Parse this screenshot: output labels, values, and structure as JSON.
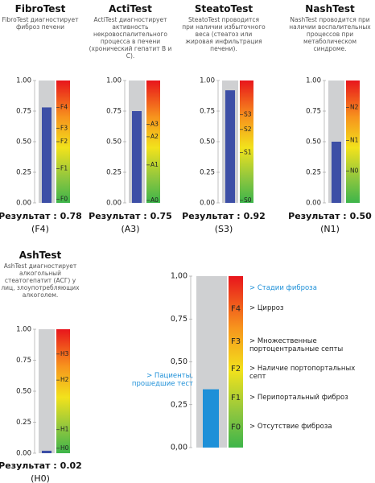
{
  "chart_data": [
    {
      "type": "bar",
      "title": "FibroTest",
      "subtitle": "FibroTest диагностирует фиброз печени",
      "values": [
        0.78
      ],
      "value_labels": [
        "0.78"
      ],
      "result_label": "Результат :",
      "result_stage": "(F4)",
      "color": "#3d4fa6",
      "ylim": [
        0,
        1
      ],
      "yticks": [
        {
          "value": 1,
          "label": "1.00"
        },
        {
          "value": 0.75,
          "label": "0.75"
        },
        {
          "value": 0.5,
          "label": "0.50"
        },
        {
          "value": 0.25,
          "label": "0.25"
        },
        {
          "value": 0,
          "label": "0.00"
        }
      ],
      "stages": [
        {
          "value": 0.78,
          "label": "F4"
        },
        {
          "value": 0.61,
          "label": "F3"
        },
        {
          "value": 0.5,
          "label": "F2"
        },
        {
          "value": 0.28,
          "label": "F1"
        },
        {
          "value": 0.03,
          "label": "F0"
        }
      ]
    },
    {
      "type": "bar",
      "title": "ActiTest",
      "subtitle": "ActiTest диагностирует активность некровоспалительного процесса в печени (хронический гепатит B и C).",
      "values": [
        0.75
      ],
      "value_labels": [
        "0.75"
      ],
      "result_label": "Результат :",
      "result_stage": "(A3)",
      "color": "#3d4fa6",
      "ylim": [
        0,
        1
      ],
      "yticks": [
        {
          "value": 1,
          "label": "1.00"
        },
        {
          "value": 0.75,
          "label": "0.75"
        },
        {
          "value": 0.5,
          "label": "0.50"
        },
        {
          "value": 0.25,
          "label": "0.25"
        },
        {
          "value": 0,
          "label": "0.00"
        }
      ],
      "stages": [
        {
          "value": 0.64,
          "label": "A3"
        },
        {
          "value": 0.54,
          "label": "A2"
        },
        {
          "value": 0.31,
          "label": "A1"
        },
        {
          "value": 0.02,
          "label": "A0"
        }
      ]
    },
    {
      "type": "bar",
      "title": "SteatoTest",
      "subtitle": "SteatoTest проводится при наличии избыточного веса (стеатоз или жировая инфильтрация печени).",
      "values": [
        0.92
      ],
      "value_labels": [
        "0.92"
      ],
      "result_label": "Результат :",
      "result_stage": "(S3)",
      "color": "#3d4fa6",
      "ylim": [
        0,
        1
      ],
      "yticks": [
        {
          "value": 1,
          "label": "1.00"
        },
        {
          "value": 0.75,
          "label": "0.75"
        },
        {
          "value": 0.5,
          "label": "0.50"
        },
        {
          "value": 0.25,
          "label": "0.25"
        },
        {
          "value": 0,
          "label": "0.00"
        }
      ],
      "stages": [
        {
          "value": 0.72,
          "label": "S3"
        },
        {
          "value": 0.6,
          "label": "S2"
        },
        {
          "value": 0.41,
          "label": "S1"
        },
        {
          "value": 0.02,
          "label": "S0"
        }
      ]
    },
    {
      "type": "bar",
      "title": "NashTest",
      "subtitle": "NashTest проводится при наличии воспалительных процессов при метаболическом синдроме.",
      "values": [
        0.5
      ],
      "value_labels": [
        "0.50"
      ],
      "result_label": "Результат :",
      "result_stage": "(N1)",
      "color": "#3d4fa6",
      "ylim": [
        0,
        1
      ],
      "yticks": [
        {
          "value": 1,
          "label": "1.00"
        },
        {
          "value": 0.75,
          "label": "0.75"
        },
        {
          "value": 0.5,
          "label": "0.50"
        },
        {
          "value": 0.25,
          "label": "0.25"
        },
        {
          "value": 0,
          "label": "0.00"
        }
      ],
      "stages": [
        {
          "value": 0.78,
          "label": "N2"
        },
        {
          "value": 0.51,
          "label": "N1"
        },
        {
          "value": 0.26,
          "label": "N0"
        }
      ]
    },
    {
      "type": "bar",
      "title": "AshTest",
      "subtitle": "AshTest диагностирует алкогольный стеатогепатит (АСГ) у лиц, злоупотребляющих алкоголем.",
      "values": [
        0.02
      ],
      "value_labels": [
        "0.02"
      ],
      "result_label": "Результат :",
      "result_stage": "(H0)",
      "color": "#3d4fa6",
      "ylim": [
        0,
        1
      ],
      "yticks": [
        {
          "value": 1,
          "label": "1.00"
        },
        {
          "value": 0.75,
          "label": "0.75"
        },
        {
          "value": 0.5,
          "label": "0.50"
        },
        {
          "value": 0.25,
          "label": "0.25"
        },
        {
          "value": 0,
          "label": "0.00"
        }
      ],
      "stages": [
        {
          "value": 0.8,
          "label": "H3"
        },
        {
          "value": 0.59,
          "label": "H2"
        },
        {
          "value": 0.19,
          "label": "H1"
        },
        {
          "value": 0.04,
          "label": "H0"
        }
      ]
    },
    {
      "type": "bar",
      "values": [
        0.34
      ],
      "color": "#1e90d8",
      "ylim": [
        0,
        1
      ],
      "legend_title": "> Стадии фиброза",
      "annotation": "> Пациенты, прошедшие тест",
      "yticks": [
        {
          "value": 1,
          "label": "1,00"
        },
        {
          "value": 0.75,
          "label": "0,75"
        },
        {
          "value": 0.5,
          "label": "0,50"
        },
        {
          "value": 0.25,
          "label": "0,25"
        },
        {
          "value": 0,
          "label": "0,00"
        }
      ],
      "stages": [
        {
          "value": 0.81,
          "label": "F4",
          "description": "> Цирроз"
        },
        {
          "value": 0.62,
          "label": "F3",
          "description": "> Множественные портоцентральные септы"
        },
        {
          "value": 0.46,
          "label": "F2",
          "description": "> Наличие портопортальных септ"
        },
        {
          "value": 0.29,
          "label": "F1",
          "description": "> Перипортальный фиброз"
        },
        {
          "value": 0.12,
          "label": "F0",
          "description": "> Отсутствие фиброза"
        }
      ]
    }
  ]
}
